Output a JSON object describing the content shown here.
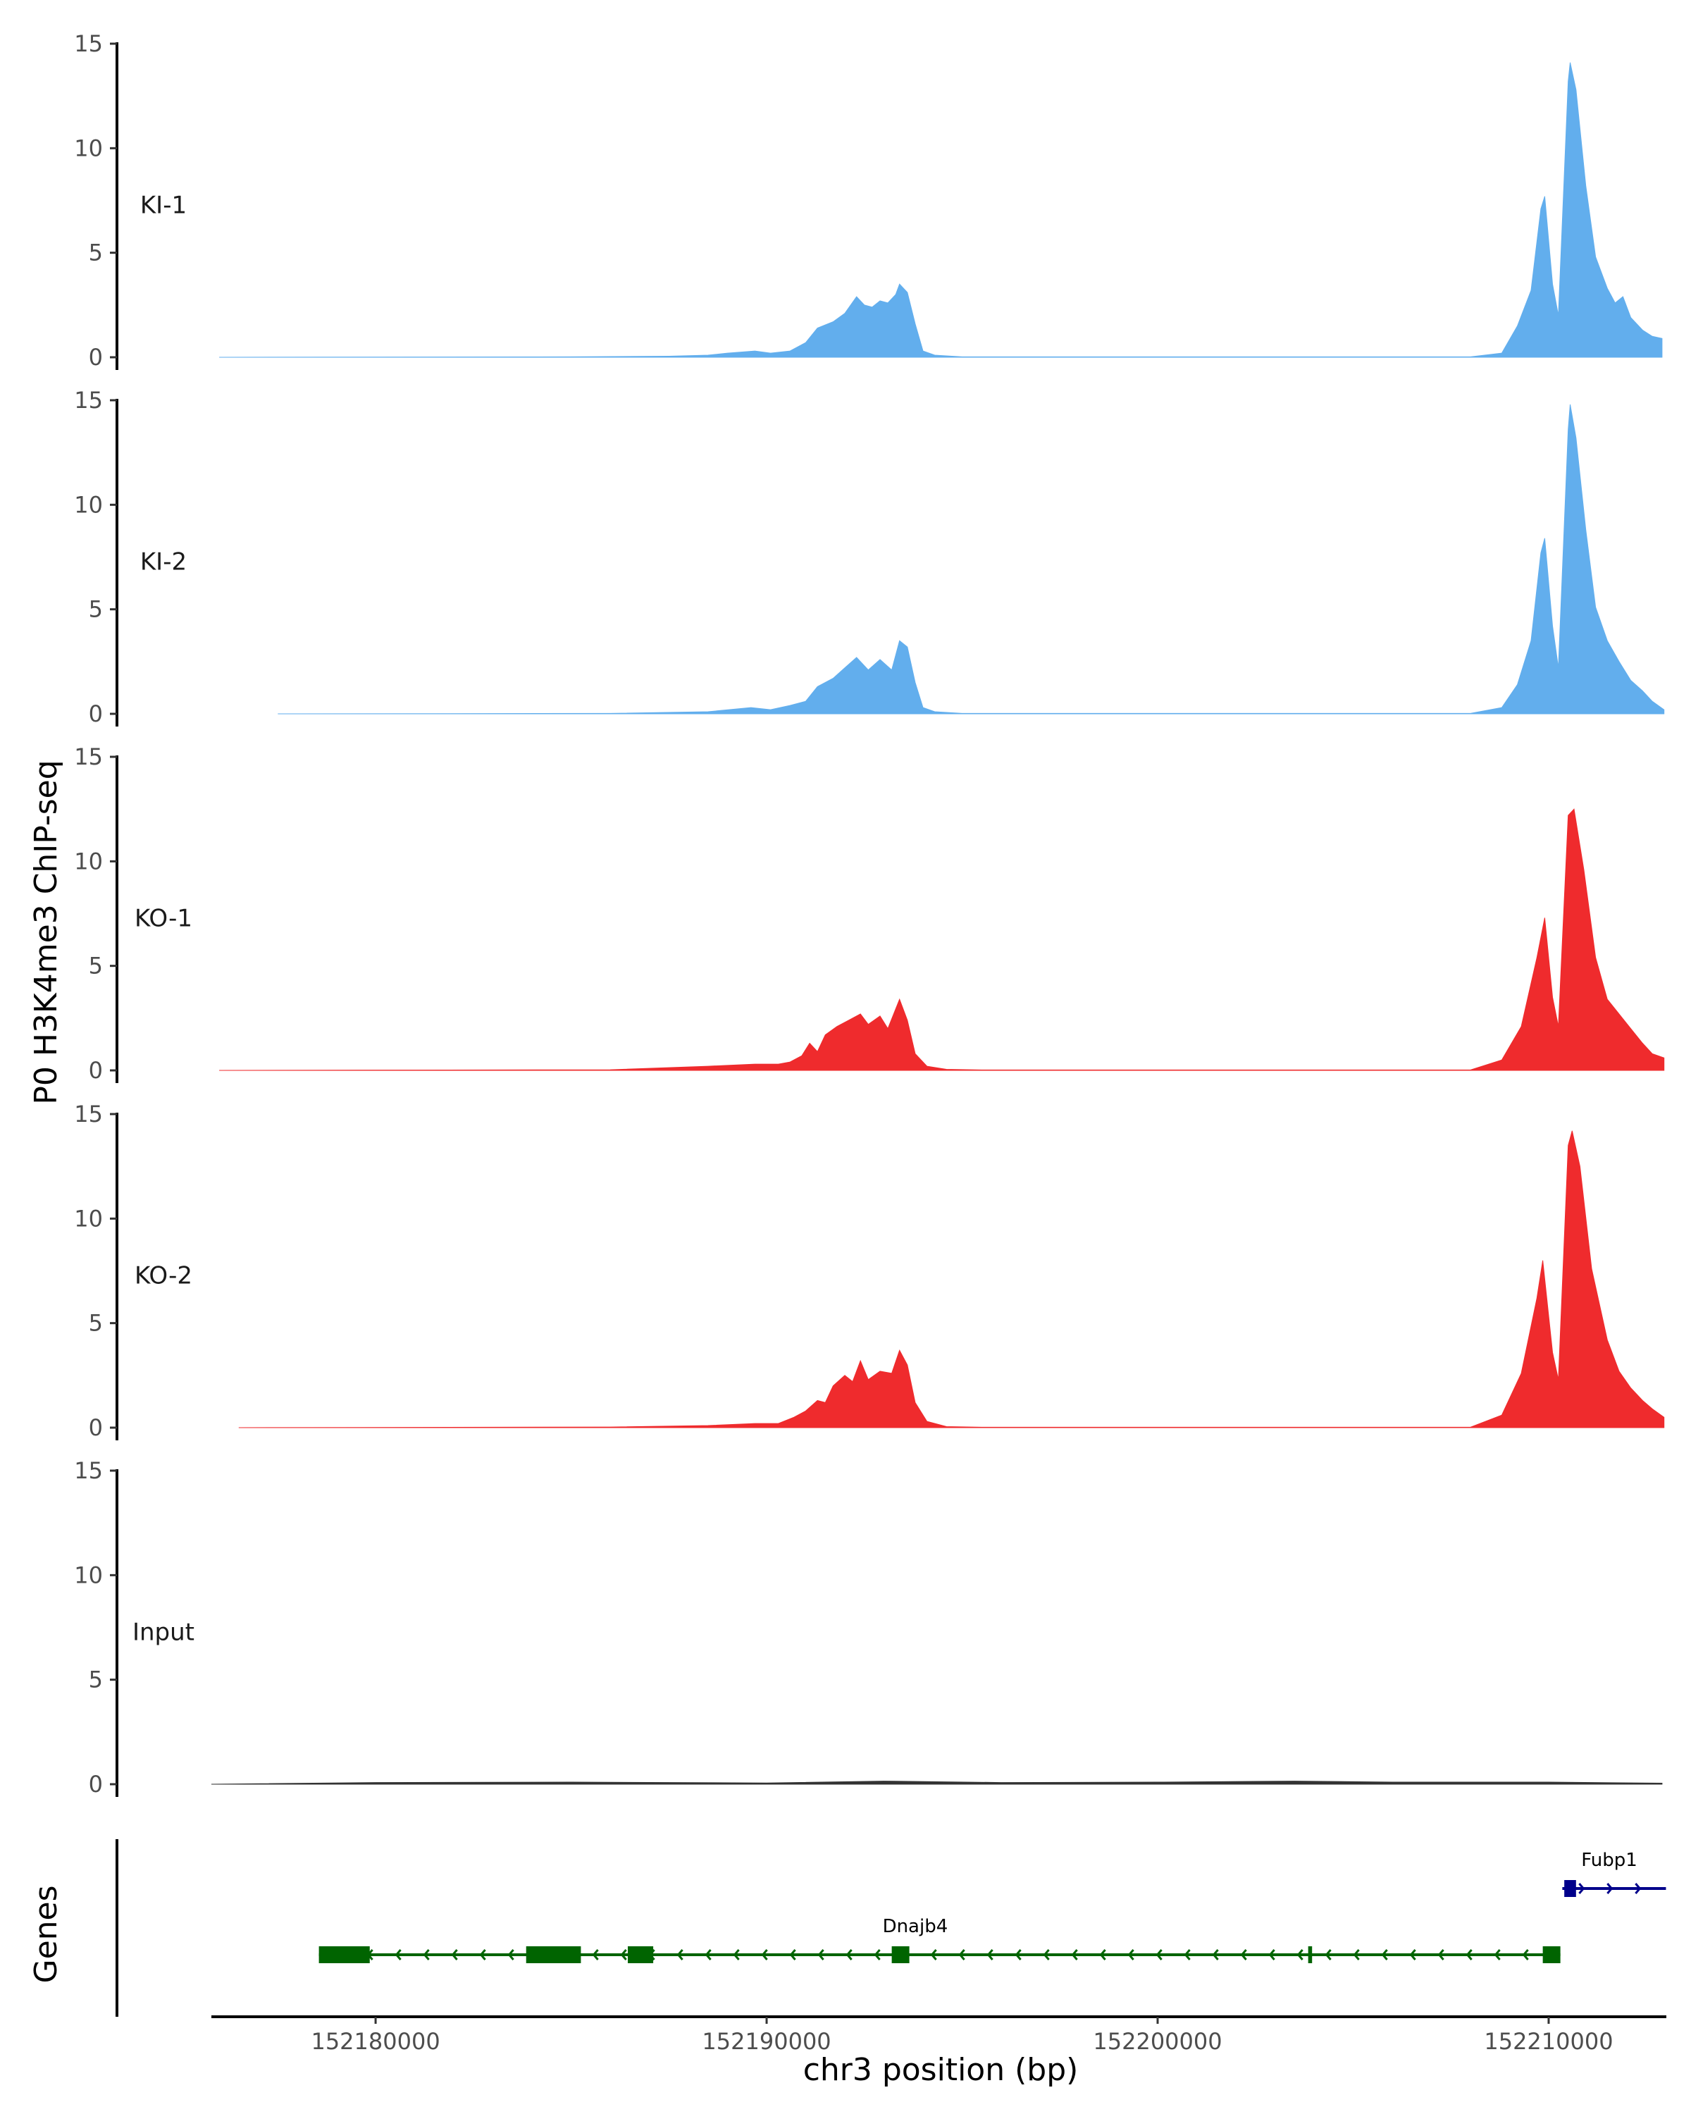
{
  "chart_data": {
    "type": "area",
    "ylabel": "P0 H3K4me3 ChIP-seq",
    "xlabel": "chr3 position (bp)",
    "genes_label": "Genes",
    "xlim": [
      152175800,
      152213100
    ],
    "ylim": [
      0,
      15
    ],
    "y_ticks": [
      "0",
      "5",
      "10",
      "15"
    ],
    "x_ticks": [
      {
        "value": 152180000,
        "label": "152180000"
      },
      {
        "value": 152190000,
        "label": "152190000"
      },
      {
        "value": 152200000,
        "label": "152200000"
      },
      {
        "value": 152210000,
        "label": "152210000"
      }
    ],
    "tracks": [
      {
        "name": "KI-1",
        "color": "#62aeed",
        "points": [
          [
            152176000,
            0
          ],
          [
            152185000,
            0.02
          ],
          [
            152187500,
            0.05
          ],
          [
            152188500,
            0.1
          ],
          [
            152189000,
            0.2
          ],
          [
            152189700,
            0.3
          ],
          [
            152190100,
            0.2
          ],
          [
            152190600,
            0.3
          ],
          [
            152191000,
            0.7
          ],
          [
            152191300,
            1.4
          ],
          [
            152191700,
            1.7
          ],
          [
            152192000,
            2.1
          ],
          [
            152192300,
            2.9
          ],
          [
            152192500,
            2.5
          ],
          [
            152192700,
            2.4
          ],
          [
            152192900,
            2.7
          ],
          [
            152193100,
            2.6
          ],
          [
            152193300,
            3.0
          ],
          [
            152193400,
            3.5
          ],
          [
            152193600,
            3.1
          ],
          [
            152193800,
            1.6
          ],
          [
            152194000,
            0.3
          ],
          [
            152194300,
            0.1
          ],
          [
            152195000,
            0.02
          ],
          [
            152208000,
            0.02
          ],
          [
            152208800,
            0.2
          ],
          [
            152209200,
            1.5
          ],
          [
            152209550,
            3.2
          ],
          [
            152209800,
            7.1
          ],
          [
            152209900,
            7.7
          ],
          [
            152210100,
            3.5
          ],
          [
            152210250,
            2.0
          ],
          [
            152210500,
            13.2
          ],
          [
            152210550,
            14.1
          ],
          [
            152210700,
            12.8
          ],
          [
            152210950,
            8.2
          ],
          [
            152211200,
            4.8
          ],
          [
            152211500,
            3.3
          ],
          [
            152211700,
            2.6
          ],
          [
            152211900,
            2.9
          ],
          [
            152212100,
            1.9
          ],
          [
            152212400,
            1.3
          ],
          [
            152212650,
            1.0
          ],
          [
            152212900,
            0.9
          ]
        ]
      },
      {
        "name": "KI-2",
        "color": "#62aeed",
        "points": [
          [
            152177500,
            0
          ],
          [
            152186000,
            0.02
          ],
          [
            152188500,
            0.1
          ],
          [
            152189600,
            0.3
          ],
          [
            152190100,
            0.2
          ],
          [
            152190600,
            0.4
          ],
          [
            152191000,
            0.6
          ],
          [
            152191300,
            1.3
          ],
          [
            152191700,
            1.7
          ],
          [
            152192000,
            2.2
          ],
          [
            152192300,
            2.7
          ],
          [
            152192600,
            2.1
          ],
          [
            152192900,
            2.6
          ],
          [
            152193200,
            2.1
          ],
          [
            152193400,
            3.5
          ],
          [
            152193600,
            3.2
          ],
          [
            152193800,
            1.5
          ],
          [
            152194000,
            0.3
          ],
          [
            152194300,
            0.1
          ],
          [
            152195000,
            0.02
          ],
          [
            152208000,
            0.02
          ],
          [
            152208800,
            0.3
          ],
          [
            152209200,
            1.4
          ],
          [
            152209550,
            3.5
          ],
          [
            152209800,
            7.7
          ],
          [
            152209900,
            8.4
          ],
          [
            152210100,
            4.2
          ],
          [
            152210250,
            2.2
          ],
          [
            152210500,
            13.6
          ],
          [
            152210550,
            14.8
          ],
          [
            152210700,
            13.2
          ],
          [
            152210950,
            8.8
          ],
          [
            152211200,
            5.1
          ],
          [
            152211500,
            3.5
          ],
          [
            152211800,
            2.5
          ],
          [
            152212100,
            1.6
          ],
          [
            152212400,
            1.1
          ],
          [
            152212650,
            0.6
          ],
          [
            152212950,
            0.2
          ]
        ]
      },
      {
        "name": "KO-1",
        "color": "#ef2b2d",
        "points": [
          [
            152176000,
            0
          ],
          [
            152186000,
            0.03
          ],
          [
            152188500,
            0.2
          ],
          [
            152189700,
            0.3
          ],
          [
            152190300,
            0.3
          ],
          [
            152190600,
            0.4
          ],
          [
            152190900,
            0.7
          ],
          [
            152191100,
            1.3
          ],
          [
            152191300,
            0.9
          ],
          [
            152191500,
            1.7
          ],
          [
            152191800,
            2.1
          ],
          [
            152192100,
            2.4
          ],
          [
            152192400,
            2.7
          ],
          [
            152192600,
            2.2
          ],
          [
            152192900,
            2.6
          ],
          [
            152193100,
            2.0
          ],
          [
            152193400,
            3.4
          ],
          [
            152193600,
            2.4
          ],
          [
            152193800,
            0.8
          ],
          [
            152194100,
            0.2
          ],
          [
            152194600,
            0.05
          ],
          [
            152195500,
            0.02
          ],
          [
            152208000,
            0.02
          ],
          [
            152208800,
            0.5
          ],
          [
            152209300,
            2.1
          ],
          [
            152209700,
            5.4
          ],
          [
            152209900,
            7.3
          ],
          [
            152210100,
            3.5
          ],
          [
            152210250,
            2.1
          ],
          [
            152210500,
            12.2
          ],
          [
            152210650,
            12.5
          ],
          [
            152210900,
            9.6
          ],
          [
            152211200,
            5.4
          ],
          [
            152211500,
            3.4
          ],
          [
            152211800,
            2.7
          ],
          [
            152212100,
            2.0
          ],
          [
            152212400,
            1.3
          ],
          [
            152212650,
            0.8
          ],
          [
            152212950,
            0.6
          ]
        ]
      },
      {
        "name": "KO-2",
        "color": "#ef2b2d",
        "points": [
          [
            152176500,
            0
          ],
          [
            152186000,
            0.03
          ],
          [
            152188500,
            0.1
          ],
          [
            152189700,
            0.2
          ],
          [
            152190300,
            0.2
          ],
          [
            152190700,
            0.5
          ],
          [
            152191000,
            0.8
          ],
          [
            152191300,
            1.3
          ],
          [
            152191500,
            1.2
          ],
          [
            152191700,
            2.0
          ],
          [
            152192000,
            2.5
          ],
          [
            152192200,
            2.2
          ],
          [
            152192400,
            3.2
          ],
          [
            152192600,
            2.3
          ],
          [
            152192900,
            2.7
          ],
          [
            152193200,
            2.6
          ],
          [
            152193400,
            3.7
          ],
          [
            152193600,
            3.0
          ],
          [
            152193800,
            1.2
          ],
          [
            152194100,
            0.3
          ],
          [
            152194600,
            0.05
          ],
          [
            152195500,
            0.02
          ],
          [
            152208000,
            0.02
          ],
          [
            152208800,
            0.6
          ],
          [
            152209300,
            2.6
          ],
          [
            152209700,
            6.2
          ],
          [
            152209850,
            8.0
          ],
          [
            152210100,
            3.6
          ],
          [
            152210250,
            2.3
          ],
          [
            152210500,
            13.5
          ],
          [
            152210600,
            14.2
          ],
          [
            152210800,
            12.5
          ],
          [
            152211100,
            7.6
          ],
          [
            152211500,
            4.2
          ],
          [
            152211800,
            2.7
          ],
          [
            152212100,
            1.9
          ],
          [
            152212400,
            1.3
          ],
          [
            152212650,
            0.9
          ],
          [
            152212950,
            0.5
          ]
        ]
      },
      {
        "name": "Input",
        "color": "#333333",
        "points": [
          [
            152175800,
            0
          ],
          [
            152180000,
            0.08
          ],
          [
            152185000,
            0.1
          ],
          [
            152190000,
            0.06
          ],
          [
            152193000,
            0.15
          ],
          [
            152196000,
            0.08
          ],
          [
            152200000,
            0.1
          ],
          [
            152203500,
            0.15
          ],
          [
            152206000,
            0.1
          ],
          [
            152210000,
            0.1
          ],
          [
            152212900,
            0.05
          ]
        ]
      }
    ],
    "genes": [
      {
        "name": "Dnajb4",
        "strand": "-",
        "color": "#006400",
        "start": 152178550,
        "end": 152210300,
        "exons": [
          [
            152178550,
            152179850
          ],
          [
            152183850,
            152185250
          ],
          [
            152186450,
            152187100
          ],
          [
            152193200,
            152193650
          ],
          [
            152203850,
            152203950
          ],
          [
            152209850,
            152210300
          ]
        ],
        "label_at": 152193800
      },
      {
        "name": "Fubp1",
        "strand": "+",
        "color": "#00008b",
        "start": 152210350,
        "end": 152213000,
        "exons": [
          [
            152210400,
            152210700
          ]
        ],
        "label_at": 152211550
      }
    ]
  }
}
